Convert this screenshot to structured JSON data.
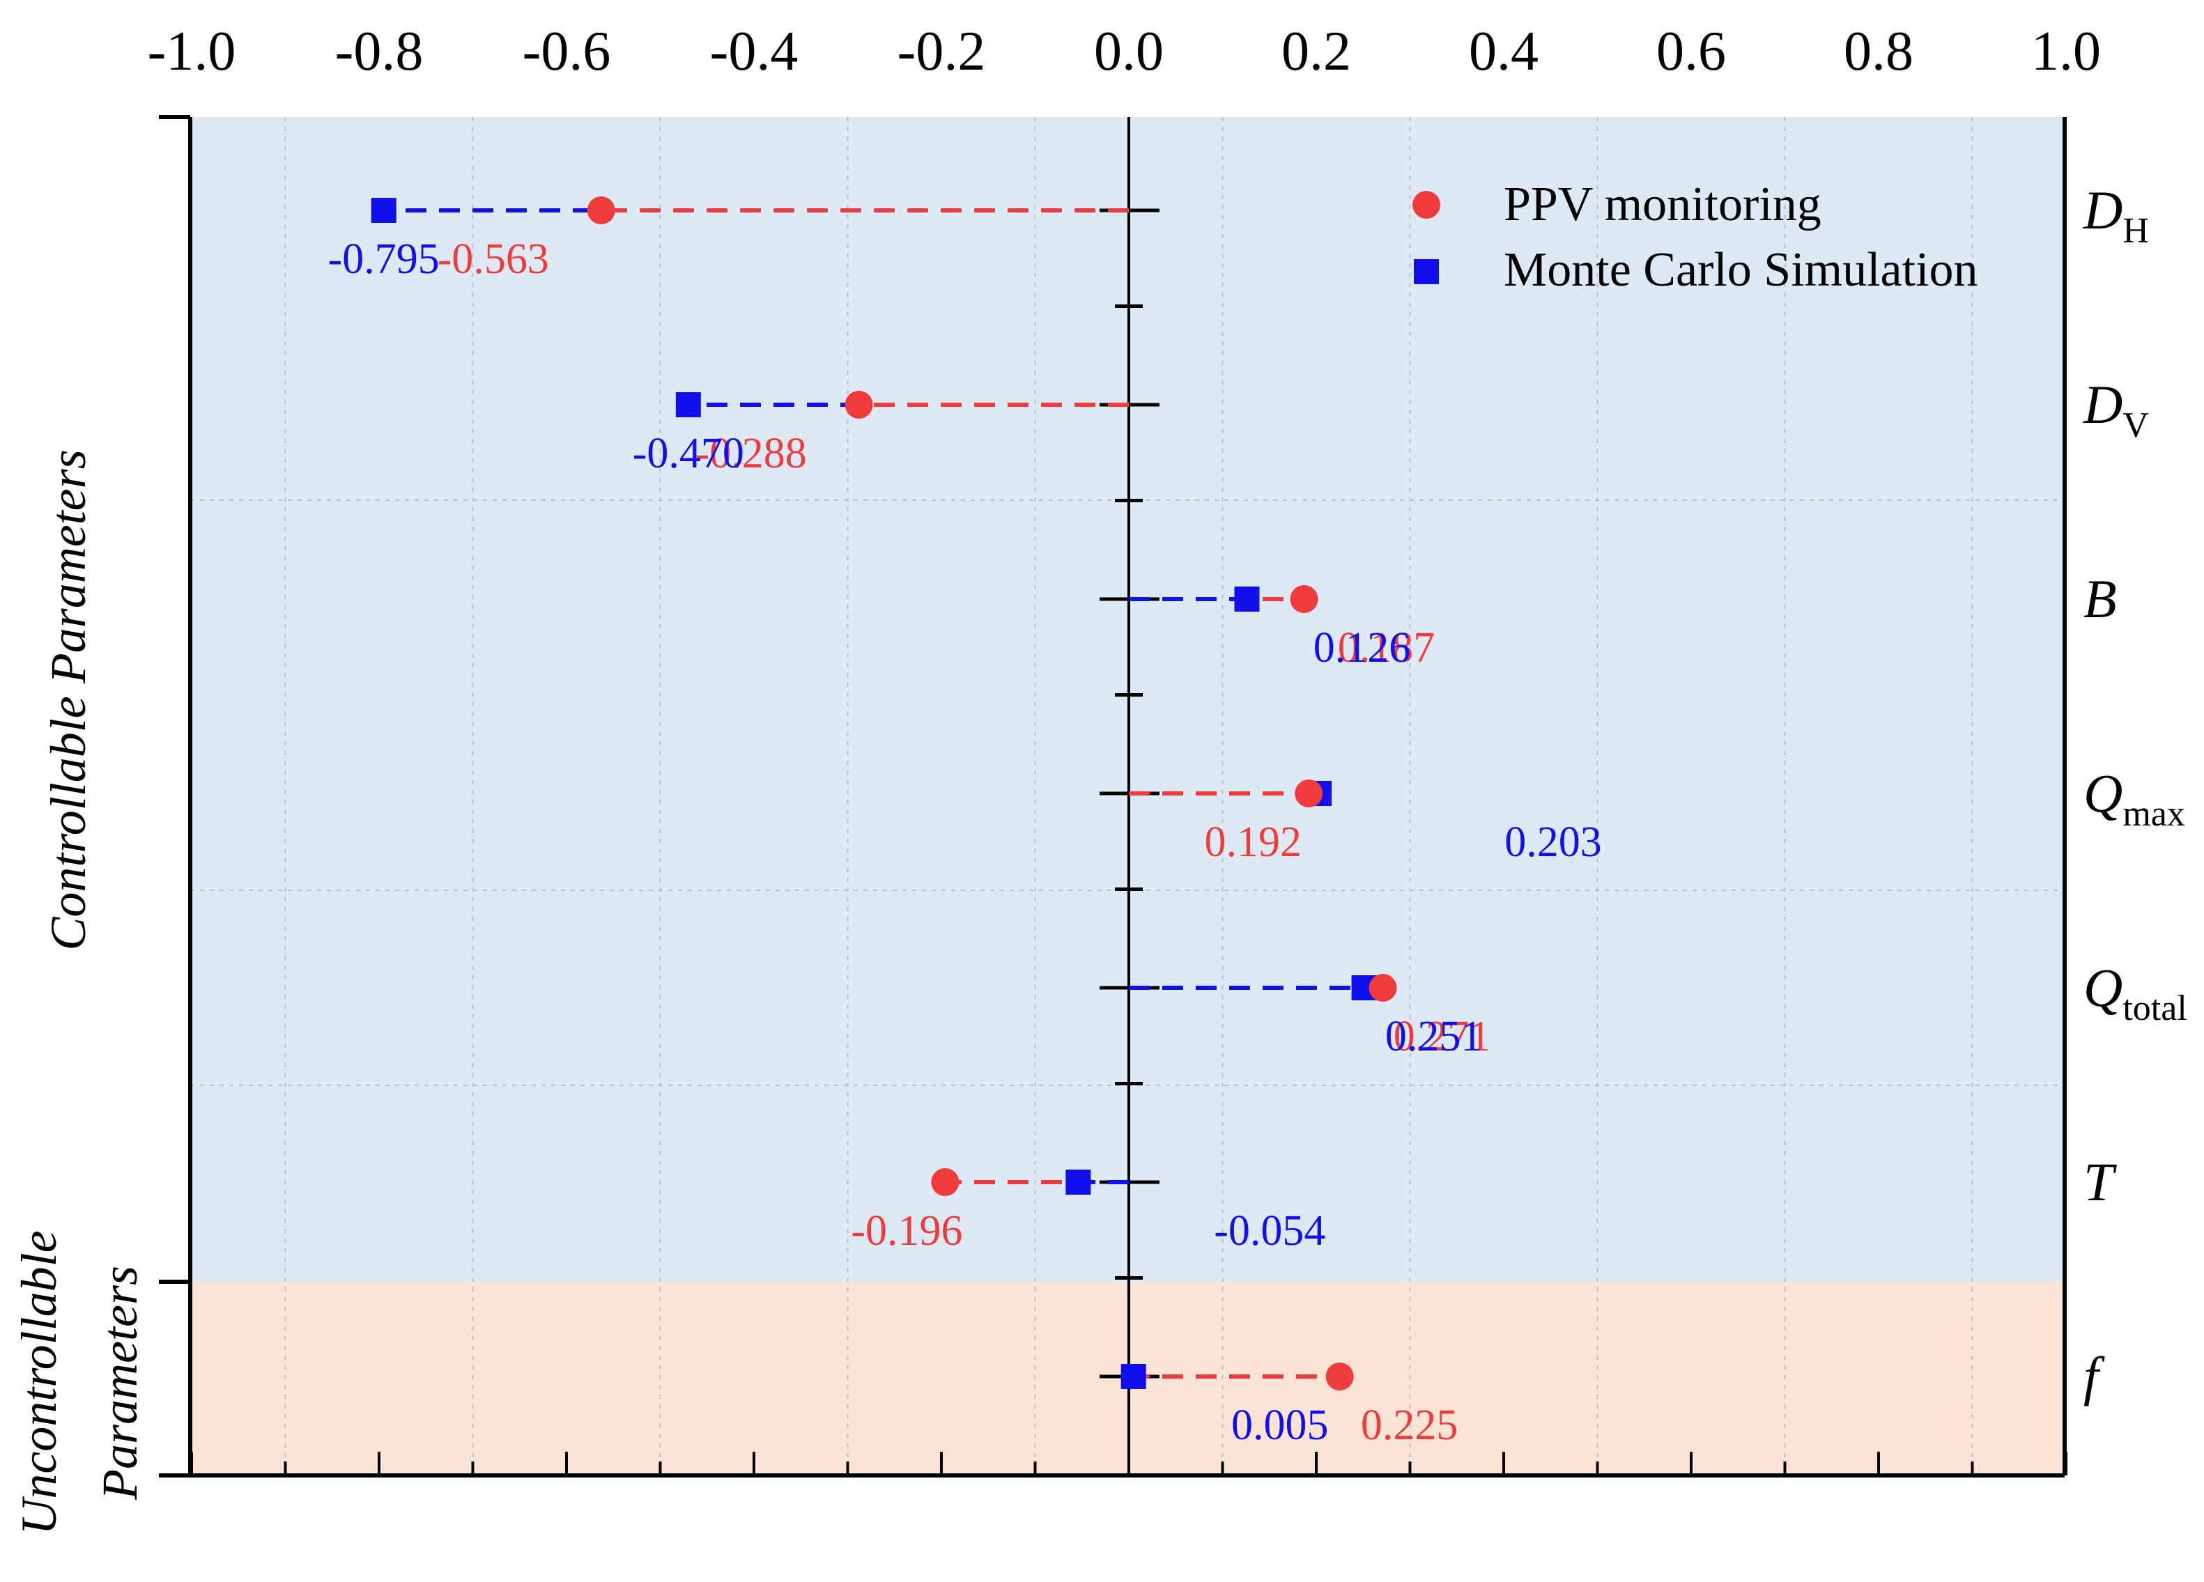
{
  "chart_data": {
    "type": "dot",
    "title": "",
    "xlim": [
      -1.0,
      1.0
    ],
    "x_ticks": [
      "-1.0",
      "-0.8",
      "-0.6",
      "-0.4",
      "-0.2",
      "0.0",
      "0.2",
      "0.4",
      "0.6",
      "0.8",
      "1.0"
    ],
    "categories": [
      {
        "base": "D",
        "sub": "H"
      },
      {
        "base": "D",
        "sub": "V"
      },
      {
        "base": "B",
        "sub": ""
      },
      {
        "base": "Q",
        "sub": "max"
      },
      {
        "base": "Q",
        "sub": "total"
      },
      {
        "base": "T",
        "sub": ""
      },
      {
        "base": "f",
        "sub": ""
      }
    ],
    "series": [
      {
        "name": "PPV monitoring",
        "color": "#ef3b3b",
        "marker": "circle",
        "values": [
          -0.563,
          -0.288,
          0.187,
          0.192,
          0.271,
          -0.196,
          0.225
        ],
        "labels": [
          "-0.563",
          "-0.288",
          "0.187",
          "0.192",
          "0.271",
          "-0.196",
          "0.225"
        ]
      },
      {
        "name": "Monte Carlo Simulation",
        "color": "#1010ee",
        "marker": "square",
        "values": [
          -0.795,
          -0.47,
          0.126,
          0.203,
          0.251,
          -0.054,
          0.005
        ],
        "labels": [
          "-0.795",
          "-0.470",
          "0.126",
          "0.203",
          "0.251",
          "-0.054",
          "0.005"
        ]
      }
    ],
    "groups": [
      {
        "name": "Controllable Parameters",
        "lines": [
          "Controllable Parameters"
        ],
        "color": "#dde9f5"
      },
      {
        "name": "Uncontrollable Parameters",
        "lines": [
          "Uncontrollable",
          "Parameters"
        ],
        "color": "#fbe3d6"
      }
    ],
    "legend_position": "top-right"
  }
}
